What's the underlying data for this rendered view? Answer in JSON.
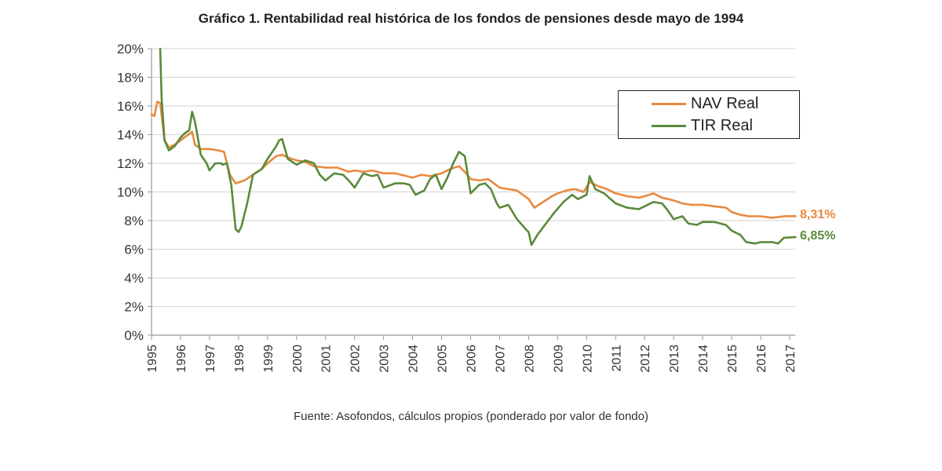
{
  "chart_data": {
    "type": "line",
    "title": "Gráfico 1. Rentabilidad real histórica de los fondos de pensiones desde mayo de 1994",
    "source": "Fuente: Asofondos, cálculos propios (ponderado por valor de fondo)",
    "xlabel": "",
    "ylabel": "",
    "ylim": [
      0,
      20
    ],
    "xlim": [
      1995,
      2017.2
    ],
    "grid": true,
    "legend_position": "top-right",
    "y_ticks": [
      "0%",
      "2%",
      "4%",
      "6%",
      "8%",
      "10%",
      "12%",
      "14%",
      "16%",
      "18%",
      "20%"
    ],
    "y_tick_values": [
      0,
      2,
      4,
      6,
      8,
      10,
      12,
      14,
      16,
      18,
      20
    ],
    "x_ticks": [
      "1995",
      "1996",
      "1997",
      "1998",
      "1999",
      "2000",
      "2001",
      "2002",
      "2003",
      "2004",
      "2005",
      "2006",
      "2007",
      "2008",
      "2009",
      "2010",
      "2011",
      "2012",
      "2013",
      "2014",
      "2015",
      "2016",
      "2017"
    ],
    "x_tick_values": [
      1995,
      1996,
      1997,
      1998,
      1999,
      2000,
      2001,
      2002,
      2003,
      2004,
      2005,
      2006,
      2007,
      2008,
      2009,
      2010,
      2011,
      2012,
      2013,
      2014,
      2015,
      2016,
      2017
    ],
    "series": [
      {
        "name": "NAV Real",
        "color": "#E8893F",
        "end_label": "8,31%",
        "x": [
          1995.0,
          1995.1,
          1995.2,
          1995.3,
          1995.45,
          1995.6,
          1995.8,
          1996.0,
          1996.2,
          1996.4,
          1996.5,
          1996.7,
          1997.0,
          1997.3,
          1997.5,
          1997.7,
          1997.9,
          1998.2,
          1998.5,
          1998.8,
          1999.0,
          1999.3,
          1999.5,
          1999.7,
          2000.0,
          2000.3,
          2000.6,
          2001.0,
          2001.4,
          2001.8,
          2002.0,
          2002.3,
          2002.6,
          2003.0,
          2003.4,
          2003.8,
          2004.0,
          2004.3,
          2004.6,
          2005.0,
          2005.3,
          2005.6,
          2005.8,
          2006.0,
          2006.3,
          2006.6,
          2007.0,
          2007.3,
          2007.6,
          2008.0,
          2008.2,
          2008.5,
          2008.8,
          2009.0,
          2009.3,
          2009.6,
          2009.9,
          2010.1,
          2010.4,
          2010.7,
          2011.0,
          2011.4,
          2011.8,
          2012.0,
          2012.3,
          2012.6,
          2013.0,
          2013.3,
          2013.6,
          2014.0,
          2014.4,
          2014.8,
          2015.0,
          2015.3,
          2015.6,
          2016.0,
          2016.4,
          2016.8,
          2017.2
        ],
        "values": [
          15.4,
          15.3,
          16.3,
          16.2,
          13.6,
          13.1,
          13.3,
          13.6,
          13.9,
          14.2,
          13.3,
          13.0,
          13.0,
          12.9,
          12.8,
          11.2,
          10.6,
          10.8,
          11.2,
          11.6,
          12.0,
          12.5,
          12.6,
          12.4,
          12.2,
          12.1,
          11.8,
          11.7,
          11.7,
          11.4,
          11.5,
          11.4,
          11.5,
          11.3,
          11.3,
          11.1,
          11.0,
          11.2,
          11.1,
          11.3,
          11.6,
          11.8,
          11.4,
          10.9,
          10.8,
          10.9,
          10.3,
          10.2,
          10.1,
          9.5,
          8.9,
          9.3,
          9.7,
          9.9,
          10.1,
          10.2,
          10.0,
          10.7,
          10.4,
          10.2,
          9.9,
          9.7,
          9.6,
          9.7,
          9.9,
          9.6,
          9.4,
          9.2,
          9.1,
          9.1,
          9.0,
          8.9,
          8.6,
          8.4,
          8.3,
          8.3,
          8.2,
          8.3,
          8.31
        ]
      },
      {
        "name": "TIR Real",
        "color": "#5A8A3A",
        "end_label": "6,85%",
        "x": [
          1995.3,
          1995.35,
          1995.45,
          1995.6,
          1995.8,
          1996.0,
          1996.15,
          1996.3,
          1996.4,
          1996.5,
          1996.7,
          1996.9,
          1997.0,
          1997.2,
          1997.4,
          1997.45,
          1997.6,
          1997.75,
          1997.9,
          1998.0,
          1998.1,
          1998.3,
          1998.5,
          1998.8,
          1999.0,
          1999.2,
          1999.3,
          1999.4,
          1999.5,
          1999.7,
          2000.0,
          2000.3,
          2000.6,
          2000.8,
          2001.0,
          2001.3,
          2001.6,
          2001.8,
          2002.0,
          2002.3,
          2002.6,
          2002.8,
          2003.0,
          2003.4,
          2003.7,
          2003.9,
          2004.1,
          2004.4,
          2004.6,
          2004.8,
          2005.0,
          2005.2,
          2005.4,
          2005.6,
          2005.8,
          2005.9,
          2006.0,
          2006.3,
          2006.5,
          2006.7,
          2006.9,
          2007.0,
          2007.3,
          2007.6,
          2007.9,
          2008.0,
          2008.1,
          2008.3,
          2008.6,
          2008.9,
          2009.2,
          2009.5,
          2009.7,
          2010.0,
          2010.1,
          2010.3,
          2010.6,
          2011.0,
          2011.4,
          2011.8,
          2012.0,
          2012.3,
          2012.6,
          2012.8,
          2013.0,
          2013.3,
          2013.5,
          2013.8,
          2014.0,
          2014.4,
          2014.8,
          2015.0,
          2015.3,
          2015.5,
          2015.8,
          2016.0,
          2016.4,
          2016.6,
          2016.8,
          2017.2
        ],
        "values": [
          20.0,
          16.5,
          13.6,
          12.9,
          13.2,
          13.8,
          14.1,
          14.3,
          15.6,
          14.9,
          12.6,
          12.0,
          11.5,
          12.0,
          12.0,
          11.9,
          12.0,
          10.5,
          7.4,
          7.2,
          7.6,
          9.2,
          11.2,
          11.6,
          12.3,
          12.9,
          13.2,
          13.6,
          13.7,
          12.3,
          11.9,
          12.2,
          12.0,
          11.2,
          10.8,
          11.3,
          11.2,
          10.8,
          10.3,
          11.3,
          11.1,
          11.2,
          10.3,
          10.6,
          10.6,
          10.5,
          9.8,
          10.1,
          10.9,
          11.2,
          10.2,
          11.0,
          12.0,
          12.8,
          12.5,
          11.2,
          9.9,
          10.5,
          10.6,
          10.2,
          9.2,
          8.9,
          9.1,
          8.1,
          7.4,
          7.2,
          6.3,
          7.0,
          7.8,
          8.6,
          9.3,
          9.8,
          9.5,
          9.8,
          11.1,
          10.2,
          9.9,
          9.2,
          8.9,
          8.8,
          9.0,
          9.3,
          9.2,
          8.7,
          8.1,
          8.3,
          7.8,
          7.7,
          7.9,
          7.9,
          7.7,
          7.3,
          7.0,
          6.5,
          6.4,
          6.5,
          6.5,
          6.4,
          6.8,
          6.85
        ]
      }
    ]
  }
}
